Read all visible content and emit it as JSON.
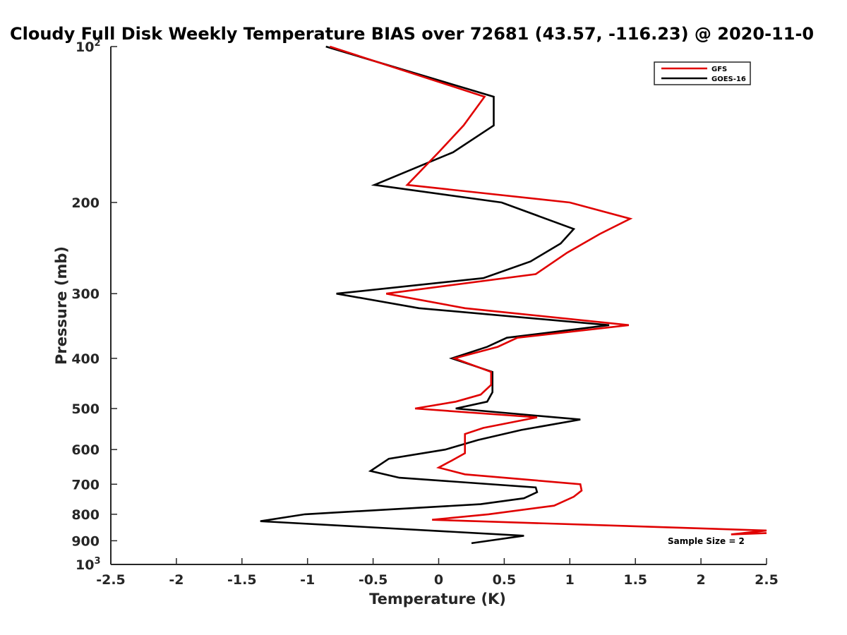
{
  "chart_data": {
    "type": "line",
    "title": "Cloudy Full Disk Weekly Temperature BIAS over 72681 (43.57, -116.23) @ 2020-11-0",
    "xlabel": "Temperature (K)",
    "ylabel": "Pressure (mb)",
    "xlim": [
      -2.5,
      2.5
    ],
    "ylim": [
      100,
      1000
    ],
    "yscale": "log",
    "y_reversed": true,
    "grid": false,
    "legend_position": "top-right",
    "x_ticks": [
      "-2.5",
      "-2",
      "-1.5",
      "-1",
      "-0.5",
      "0",
      "0.5",
      "1",
      "1.5",
      "2",
      "2.5"
    ],
    "y_ticks": [
      {
        "value": 100,
        "base": "10",
        "exp": "2"
      },
      {
        "value": 200,
        "label": "200"
      },
      {
        "value": 300,
        "label": "300"
      },
      {
        "value": 400,
        "label": "400"
      },
      {
        "value": 500,
        "label": "500"
      },
      {
        "value": 600,
        "label": "600"
      },
      {
        "value": 700,
        "label": "700"
      },
      {
        "value": 800,
        "label": "800"
      },
      {
        "value": 900,
        "label": "900"
      },
      {
        "value": 1000,
        "base": "10",
        "exp": "3"
      }
    ],
    "annotation": "Sample Size = 2",
    "series": [
      {
        "name": "GFS",
        "color": "#e00000",
        "points": [
          {
            "x": -0.83,
            "y": 100
          },
          {
            "x": 0.35,
            "y": 125
          },
          {
            "x": 0.19,
            "y": 142
          },
          {
            "x": 0.0,
            "y": 160
          },
          {
            "x": -0.24,
            "y": 185
          },
          {
            "x": 1.0,
            "y": 200
          },
          {
            "x": 1.46,
            "y": 215
          },
          {
            "x": 1.23,
            "y": 230
          },
          {
            "x": 0.98,
            "y": 250
          },
          {
            "x": 0.74,
            "y": 275
          },
          {
            "x": -0.4,
            "y": 300
          },
          {
            "x": 0.2,
            "y": 320
          },
          {
            "x": 1.45,
            "y": 345
          },
          {
            "x": 0.6,
            "y": 365
          },
          {
            "x": 0.45,
            "y": 380
          },
          {
            "x": 0.12,
            "y": 400
          },
          {
            "x": 0.4,
            "y": 425
          },
          {
            "x": 0.4,
            "y": 450
          },
          {
            "x": 0.32,
            "y": 470
          },
          {
            "x": 0.13,
            "y": 485
          },
          {
            "x": -0.18,
            "y": 500
          },
          {
            "x": 0.75,
            "y": 520
          },
          {
            "x": 0.34,
            "y": 545
          },
          {
            "x": 0.2,
            "y": 560
          },
          {
            "x": 0.2,
            "y": 580
          },
          {
            "x": 0.2,
            "y": 610
          },
          {
            "x": 0.1,
            "y": 630
          },
          {
            "x": 0.0,
            "y": 650
          },
          {
            "x": 0.2,
            "y": 670
          },
          {
            "x": 1.08,
            "y": 700
          },
          {
            "x": 1.09,
            "y": 720
          },
          {
            "x": 1.03,
            "y": 740
          },
          {
            "x": 0.88,
            "y": 770
          },
          {
            "x": 0.38,
            "y": 800
          },
          {
            "x": -0.05,
            "y": 820
          },
          {
            "x": 2.5,
            "y": 860
          },
          {
            "x": 2.23,
            "y": 875
          },
          {
            "x": 2.5,
            "y": 870
          }
        ]
      },
      {
        "name": "GOES-16",
        "color": "#000000",
        "points": [
          {
            "x": -0.86,
            "y": 100
          },
          {
            "x": 0.42,
            "y": 125
          },
          {
            "x": 0.42,
            "y": 142
          },
          {
            "x": 0.11,
            "y": 160
          },
          {
            "x": -0.49,
            "y": 185
          },
          {
            "x": 0.48,
            "y": 200
          },
          {
            "x": 1.03,
            "y": 225
          },
          {
            "x": 0.93,
            "y": 240
          },
          {
            "x": 0.7,
            "y": 260
          },
          {
            "x": 0.34,
            "y": 280
          },
          {
            "x": -0.78,
            "y": 300
          },
          {
            "x": -0.15,
            "y": 320
          },
          {
            "x": 1.3,
            "y": 345
          },
          {
            "x": 0.52,
            "y": 365
          },
          {
            "x": 0.37,
            "y": 380
          },
          {
            "x": 0.1,
            "y": 400
          },
          {
            "x": 0.41,
            "y": 425
          },
          {
            "x": 0.41,
            "y": 450
          },
          {
            "x": 0.41,
            "y": 465
          },
          {
            "x": 0.37,
            "y": 485
          },
          {
            "x": 0.13,
            "y": 500
          },
          {
            "x": 1.08,
            "y": 525
          },
          {
            "x": 0.63,
            "y": 550
          },
          {
            "x": 0.3,
            "y": 575
          },
          {
            "x": 0.05,
            "y": 600
          },
          {
            "x": -0.38,
            "y": 625
          },
          {
            "x": -0.52,
            "y": 660
          },
          {
            "x": -0.3,
            "y": 680
          },
          {
            "x": 0.74,
            "y": 710
          },
          {
            "x": 0.75,
            "y": 725
          },
          {
            "x": 0.65,
            "y": 745
          },
          {
            "x": 0.32,
            "y": 765
          },
          {
            "x": -1.02,
            "y": 800
          },
          {
            "x": -1.36,
            "y": 825
          },
          {
            "x": 0.65,
            "y": 880
          },
          {
            "x": 0.25,
            "y": 910
          }
        ]
      }
    ]
  }
}
